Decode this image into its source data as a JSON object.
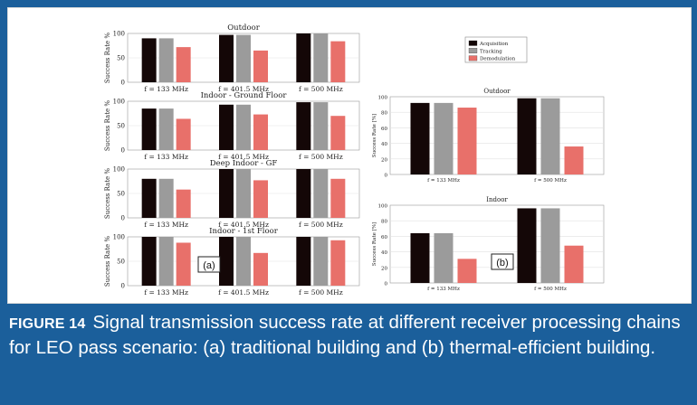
{
  "caption": {
    "label": "FIGURE 14",
    "text": "Signal transmission success rate at different receiver processing chains for LEO pass scenario: (a) traditional building and (b) thermal-efficient building."
  },
  "legend": {
    "entries": [
      "Acquisition",
      "Tracking",
      "Demodulation"
    ],
    "colors": [
      "#140707",
      "#9b9b9b",
      "#e8706a"
    ]
  },
  "chart_data": [
    {
      "type": "bar",
      "panel": "(a)",
      "title": "Outdoor",
      "categories": [
        "f = 133 MHz",
        "f = 401.5 MHz",
        "f = 500 MHz"
      ],
      "series": [
        {
          "name": "Acquisition",
          "values": [
            90,
            97,
            100
          ]
        },
        {
          "name": "Tracking",
          "values": [
            90,
            97,
            100
          ]
        },
        {
          "name": "Demodulation",
          "values": [
            72,
            65,
            84
          ]
        }
      ],
      "ylabel": "Success Rate %",
      "ylim": [
        0,
        100
      ],
      "yticks": [
        0,
        50,
        100
      ]
    },
    {
      "type": "bar",
      "panel": "(a)",
      "title": "Indoor - Ground Floor",
      "categories": [
        "f = 133 MHz",
        "f = 401.5 MHz",
        "f = 500 MHz"
      ],
      "series": [
        {
          "name": "Acquisition",
          "values": [
            85,
            93,
            98
          ]
        },
        {
          "name": "Tracking",
          "values": [
            85,
            93,
            98
          ]
        },
        {
          "name": "Demodulation",
          "values": [
            64,
            73,
            70
          ]
        }
      ],
      "ylabel": "Success Rate %",
      "ylim": [
        0,
        100
      ],
      "yticks": [
        0,
        50,
        100
      ]
    },
    {
      "type": "bar",
      "panel": "(a)",
      "title": "Deep Indoor - GF",
      "categories": [
        "f = 133 MHz",
        "f = 401.5 MHz",
        "f = 500 MHz"
      ],
      "series": [
        {
          "name": "Acquisition",
          "values": [
            80,
            100,
            100
          ]
        },
        {
          "name": "Tracking",
          "values": [
            80,
            100,
            100
          ]
        },
        {
          "name": "Demodulation",
          "values": [
            58,
            77,
            80
          ]
        }
      ],
      "ylabel": "Success Rate %",
      "ylim": [
        0,
        100
      ],
      "yticks": [
        0,
        50,
        100
      ]
    },
    {
      "type": "bar",
      "panel": "(a)",
      "title": "Indoor - 1st Floor",
      "categories": [
        "f = 133 MHz",
        "f = 401.5 MHz",
        "f = 500 MHz"
      ],
      "series": [
        {
          "name": "Acquisition",
          "values": [
            100,
            100,
            100
          ]
        },
        {
          "name": "Tracking",
          "values": [
            100,
            100,
            100
          ]
        },
        {
          "name": "Demodulation",
          "values": [
            88,
            67,
            93
          ]
        }
      ],
      "ylabel": "Success Rate %",
      "ylim": [
        0,
        100
      ],
      "yticks": [
        0,
        50,
        100
      ]
    },
    {
      "type": "bar",
      "panel": "(b)",
      "title": "Outdoor",
      "categories": [
        "f = 133 MHz",
        "f = 500 MHz"
      ],
      "series": [
        {
          "name": "Acquisition",
          "values": [
            92,
            98
          ]
        },
        {
          "name": "Tracking",
          "values": [
            92,
            98
          ]
        },
        {
          "name": "Demodulation",
          "values": [
            86,
            36
          ]
        }
      ],
      "ylabel": "Success Rate [%]",
      "ylim": [
        0,
        100
      ],
      "yticks": [
        0,
        20,
        40,
        60,
        80,
        100
      ]
    },
    {
      "type": "bar",
      "panel": "(b)",
      "title": "Indoor",
      "categories": [
        "f = 133 MHz",
        "f = 500 MHz"
      ],
      "series": [
        {
          "name": "Acquisition",
          "values": [
            64,
            96
          ]
        },
        {
          "name": "Tracking",
          "values": [
            64,
            96
          ]
        },
        {
          "name": "Demodulation",
          "values": [
            31,
            48
          ]
        }
      ],
      "ylabel": "Success Rate [%]",
      "ylim": [
        0,
        100
      ],
      "yticks": [
        0,
        20,
        40,
        60,
        80,
        100
      ]
    }
  ]
}
